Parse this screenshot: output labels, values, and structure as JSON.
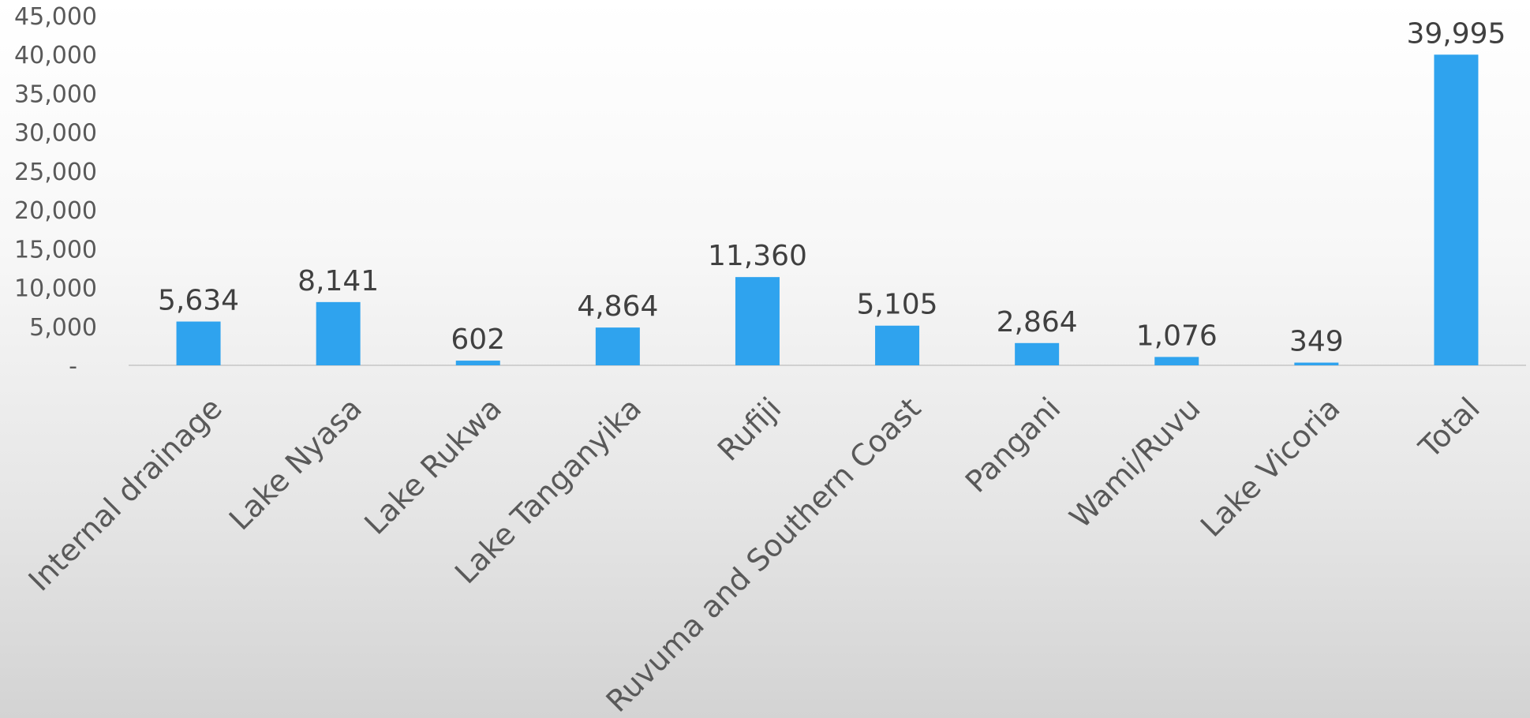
{
  "chart_data": {
    "type": "bar",
    "title": "",
    "xlabel": "",
    "ylabel": "",
    "categories": [
      "Internal drainage",
      "Lake Nyasa",
      "Lake Rukwa",
      "Lake Tanganyika",
      "Rufiji",
      "Ruvuma and Southern Coast",
      "Pangani",
      "Wami/Ruvu",
      "Lake Vicoria",
      "Total"
    ],
    "values": [
      5634,
      8141,
      602,
      4864,
      11360,
      5105,
      2864,
      1076,
      349,
      39995
    ],
    "value_labels": [
      "5,634",
      "8,141",
      "602",
      "4,864",
      "11,360",
      "5,105",
      "2,864",
      "1,076",
      "349",
      "39,995"
    ],
    "ylim": [
      0,
      45000
    ],
    "y_ticks": [
      0,
      5000,
      10000,
      15000,
      20000,
      25000,
      30000,
      35000,
      40000,
      45000
    ],
    "y_tick_labels": [
      "-",
      "5,000",
      "10,000",
      "15,000",
      "20,000",
      "25,000",
      "30,000",
      "35,000",
      "40,000",
      "45,000"
    ],
    "grid": false,
    "legend": "none",
    "bar_color": "#2fa3ee",
    "axis_color": "#d0d0d0"
  }
}
